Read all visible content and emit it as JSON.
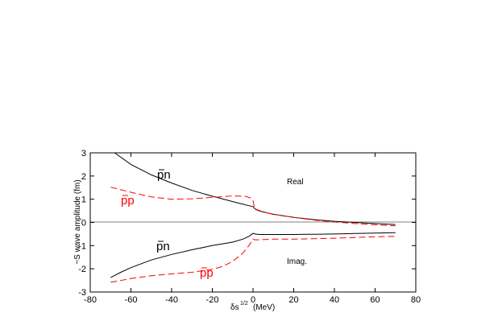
{
  "chart_data": {
    "type": "line",
    "title": "",
    "xlabel": "δs",
    "xlabel_superscript": "1/2",
    "xlabel_unit": "(MeV)",
    "ylabel": "~S wave amplitude (fm)",
    "xlim": [
      -80,
      80
    ],
    "ylim": [
      -3,
      3
    ],
    "xticks": [
      -80,
      -60,
      -40,
      -20,
      0,
      20,
      40,
      60,
      80
    ],
    "yticks": [
      -3,
      -2,
      -1,
      0,
      1,
      2,
      3
    ],
    "grid": false,
    "zero_line": true,
    "annotations": {
      "real": "Real",
      "imag": "Imag.",
      "pn_upper": "pn",
      "pp_upper": "pp",
      "pn_lower": "pn",
      "pp_lower": "pp"
    },
    "series": [
      {
        "name": "pn",
        "part": "real",
        "color": "#000000",
        "dash": "solid",
        "points": [
          [
            -68,
            3.0
          ],
          [
            -60,
            2.5
          ],
          [
            -50,
            2.05
          ],
          [
            -40,
            1.7
          ],
          [
            -30,
            1.38
          ],
          [
            -20,
            1.13
          ],
          [
            -10,
            0.9
          ],
          [
            -2,
            0.72
          ],
          [
            0,
            0.68
          ],
          [
            1,
            0.58
          ],
          [
            3,
            0.5
          ],
          [
            5,
            0.45
          ],
          [
            10,
            0.35
          ],
          [
            20,
            0.22
          ],
          [
            30,
            0.12
          ],
          [
            40,
            0.05
          ],
          [
            50,
            0.0
          ],
          [
            60,
            -0.05
          ],
          [
            70,
            -0.09
          ]
        ]
      },
      {
        "name": "pp",
        "part": "real",
        "color": "#ff0000",
        "dash": "dashed",
        "points": [
          [
            -70,
            1.52
          ],
          [
            -60,
            1.3
          ],
          [
            -50,
            1.1
          ],
          [
            -40,
            1.0
          ],
          [
            -30,
            1.02
          ],
          [
            -20,
            1.08
          ],
          [
            -10,
            1.14
          ],
          [
            -4,
            1.13
          ],
          [
            -1,
            1.05
          ],
          [
            0,
            0.95
          ],
          [
            0.5,
            0.7
          ],
          [
            1,
            0.62
          ],
          [
            2,
            0.55
          ],
          [
            5,
            0.45
          ],
          [
            10,
            0.35
          ],
          [
            20,
            0.22
          ],
          [
            30,
            0.1
          ],
          [
            40,
            0.02
          ],
          [
            50,
            -0.05
          ],
          [
            60,
            -0.1
          ],
          [
            70,
            -0.15
          ]
        ]
      },
      {
        "name": "pn",
        "part": "imaginary",
        "color": "#000000",
        "dash": "solid",
        "points": [
          [
            -70,
            -2.38
          ],
          [
            -65,
            -2.15
          ],
          [
            -60,
            -1.95
          ],
          [
            -50,
            -1.62
          ],
          [
            -40,
            -1.38
          ],
          [
            -30,
            -1.18
          ],
          [
            -20,
            -1.0
          ],
          [
            -10,
            -0.85
          ],
          [
            -5,
            -0.72
          ],
          [
            -2,
            -0.6
          ],
          [
            0,
            -0.47
          ],
          [
            1,
            -0.5
          ],
          [
            3,
            -0.52
          ],
          [
            10,
            -0.52
          ],
          [
            20,
            -0.52
          ],
          [
            30,
            -0.51
          ],
          [
            40,
            -0.5
          ],
          [
            50,
            -0.48
          ],
          [
            60,
            -0.46
          ],
          [
            70,
            -0.44
          ]
        ]
      },
      {
        "name": "pp",
        "part": "imaginary",
        "color": "#ff0000",
        "dash": "dashed",
        "points": [
          [
            -70,
            -2.58
          ],
          [
            -60,
            -2.42
          ],
          [
            -50,
            -2.3
          ],
          [
            -40,
            -2.22
          ],
          [
            -30,
            -2.15
          ],
          [
            -20,
            -2.02
          ],
          [
            -15,
            -1.9
          ],
          [
            -10,
            -1.68
          ],
          [
            -5,
            -1.32
          ],
          [
            -2,
            -1.0
          ],
          [
            0,
            -0.72
          ],
          [
            1,
            -0.75
          ],
          [
            3,
            -0.75
          ],
          [
            10,
            -0.72
          ],
          [
            20,
            -0.72
          ],
          [
            30,
            -0.7
          ],
          [
            40,
            -0.68
          ],
          [
            50,
            -0.65
          ],
          [
            60,
            -0.62
          ],
          [
            70,
            -0.6
          ]
        ]
      }
    ]
  }
}
